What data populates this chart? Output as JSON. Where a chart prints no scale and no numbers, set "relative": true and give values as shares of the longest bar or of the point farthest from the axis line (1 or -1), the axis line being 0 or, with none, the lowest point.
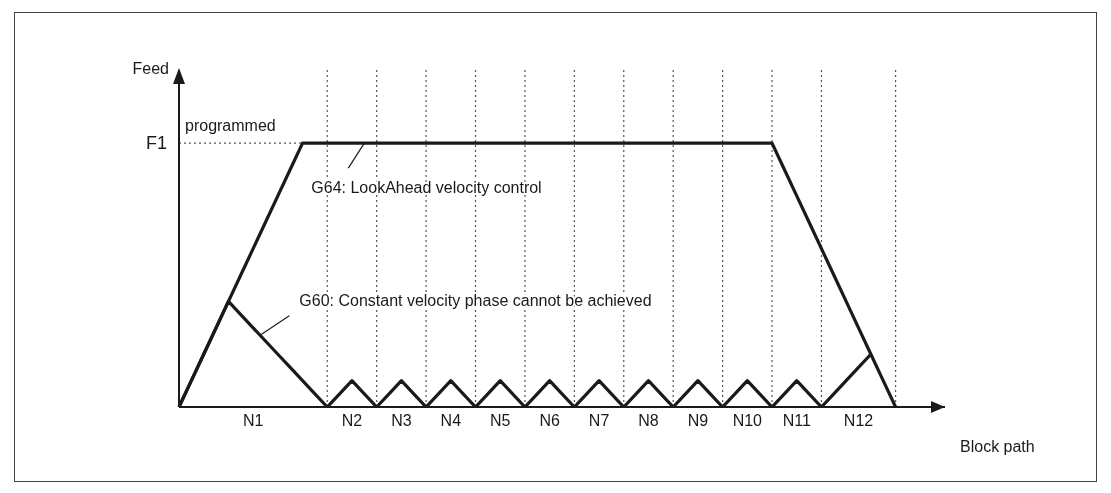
{
  "chart_data": {
    "type": "line",
    "relative": true,
    "ylabel": "Feed",
    "xlabel": "Block path",
    "categories": [
      null,
      null,
      null,
      null,
      null,
      null,
      "N1",
      null,
      null,
      null,
      null,
      null,
      null,
      null,
      "N2",
      null,
      null,
      null,
      "N3",
      null,
      null,
      null,
      "N4",
      null,
      null,
      null,
      "N5",
      null,
      null,
      null,
      "N6",
      null,
      null,
      null,
      "N7",
      null,
      null,
      null,
      "N8",
      null,
      null,
      null,
      "N9",
      null,
      null,
      null,
      "N10",
      null,
      null,
      null,
      "N11",
      null,
      null,
      null,
      null,
      "N12",
      null,
      null,
      null,
      null,
      null,
      null,
      null
    ],
    "series": [
      {
        "color": "#1a1a1a",
        "values": [
          0,
          0.1,
          0.2,
          0.3,
          0.4,
          0.5,
          0.6,
          0.7,
          0.8,
          0.9,
          1,
          1,
          1,
          1,
          1,
          1,
          1,
          1,
          1,
          1,
          1,
          1,
          1,
          1,
          1,
          1,
          1,
          1,
          1,
          1,
          1,
          1,
          1,
          1,
          1,
          1,
          1,
          1,
          1,
          1,
          1,
          1,
          1,
          1,
          1,
          1,
          1,
          1,
          1,
          0.9,
          0.8,
          0.7,
          0.6,
          0.5,
          0.4,
          0.3,
          0.2,
          0.1,
          0,
          null,
          null,
          null,
          null
        ]
      },
      {
        "color": "#1a1a1a",
        "values": [
          0,
          0.1,
          0.2,
          0.3,
          0.4,
          0.35,
          0.3,
          0.25,
          0.2,
          0.15,
          0.1,
          0.05,
          0,
          0.05,
          0.1,
          0.05,
          0,
          0.05,
          0.1,
          0.05,
          0,
          0.05,
          0.1,
          0.05,
          0,
          0.05,
          0.1,
          0.05,
          0,
          0.05,
          0.1,
          0.05,
          0,
          0.05,
          0.1,
          0.05,
          0,
          0.05,
          0.1,
          0.05,
          0,
          0.05,
          0.1,
          0.05,
          0,
          0.05,
          0.1,
          0.05,
          0,
          0.05,
          0.1,
          0.05,
          0,
          0.05,
          0.1,
          0.15,
          0.2,
          null,
          null,
          null,
          null,
          null,
          null
        ]
      }
    ],
    "ref_lines": [
      {
        "axis": "y",
        "value": 1,
        "label": "F1",
        "line_style": "dotted",
        "color": "#555555"
      }
    ],
    "annotations": [
      "programmed",
      "G64: LookAhead velocity control",
      "G60: Constant velocity phase cannot be achieved"
    ],
    "line_style": "solid",
    "marker": "none",
    "grid": "x",
    "legend": false
  }
}
